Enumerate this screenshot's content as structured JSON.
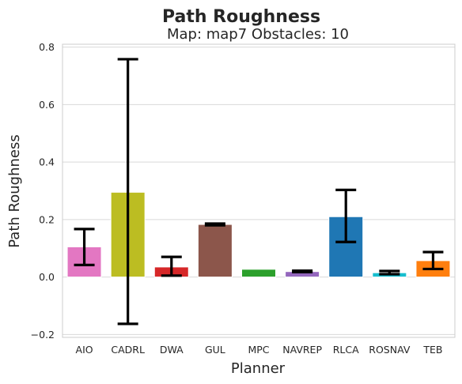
{
  "chart_data": {
    "type": "bar",
    "title": "Path Roughness",
    "subtitle": "Map: map7 Obstacles: 10",
    "xlabel": "Planner",
    "ylabel": "Path Roughness",
    "ylim": [
      -0.21,
      0.81
    ],
    "yticks": [
      -0.2,
      0.0,
      0.2,
      0.4,
      0.6,
      0.8
    ],
    "ytick_labels": [
      "−0.2",
      "0.0",
      "0.2",
      "0.4",
      "0.6",
      "0.8"
    ],
    "grid": "horizontal",
    "categories": [
      "AIO",
      "CADRL",
      "DWA",
      "GUL",
      "MPC",
      "NAVREP",
      "RLCA",
      "ROSNAV",
      "TEB"
    ],
    "values": [
      0.105,
      0.295,
      0.035,
      0.183,
      0.027,
      0.019,
      0.21,
      0.015,
      0.057
    ],
    "error_low": [
      0.042,
      -0.163,
      0.005,
      0.18,
      null,
      0.017,
      0.122,
      0.01,
      0.028
    ],
    "error_high": [
      0.167,
      0.758,
      0.07,
      0.186,
      null,
      0.022,
      0.303,
      0.021,
      0.087
    ],
    "colors": [
      "#e377c2",
      "#bcbd22",
      "#d62728",
      "#8c564b",
      "#2ca02c",
      "#9467bd",
      "#1f77b4",
      "#17becf",
      "#ff7f0e"
    ]
  }
}
